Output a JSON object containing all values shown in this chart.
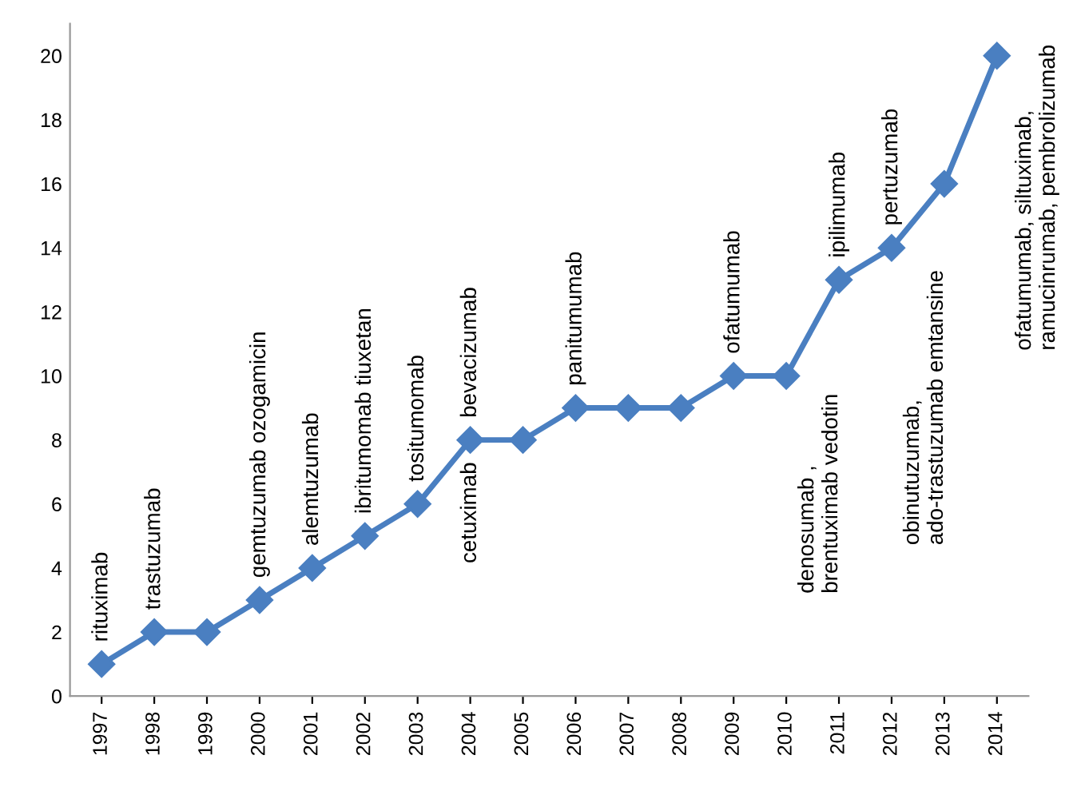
{
  "chart_data": {
    "type": "line",
    "categories": [
      "1997",
      "1998",
      "1999",
      "2000",
      "2001",
      "2002",
      "2003",
      "2004",
      "2005",
      "2006",
      "2007",
      "2008",
      "2009",
      "2010",
      "2011",
      "2012",
      "2013",
      "2014"
    ],
    "series": [
      {
        "color": "#4a7fc1",
        "values": [
          1,
          2,
          2,
          3,
          4,
          5,
          6,
          8,
          8,
          9,
          9,
          9,
          10,
          10,
          13,
          14,
          16,
          20
        ]
      }
    ],
    "marker": "diamond",
    "line_style": "solid",
    "grid": false,
    "legend": false,
    "ylim": [
      0,
      21
    ],
    "yticks": [
      0,
      2,
      4,
      6,
      8,
      10,
      12,
      14,
      16,
      18,
      20
    ],
    "annotations": [
      {
        "text": "rituximab",
        "x": "1997",
        "y": 1
      },
      {
        "text": "trastuzumab",
        "x": "1998",
        "y": 2
      },
      {
        "text": "gemtuzumab ozogamicin",
        "x": "2000",
        "y": 3
      },
      {
        "text": "alemtuzumab",
        "x": "2001",
        "y": 4
      },
      {
        "text": "ibritumomab tiuxetan",
        "x": "2002",
        "y": 5
      },
      {
        "text": "tositumomab",
        "x": "2003",
        "y": 6
      },
      {
        "text": "bevacizumab",
        "x": "2004",
        "y": 8
      },
      {
        "text": "cetuximab",
        "x": "2004",
        "y": 8
      },
      {
        "text": "panitumumab",
        "x": "2006",
        "y": 9
      },
      {
        "text": "ofatumumab",
        "x": "2009",
        "y": 10
      },
      {
        "text": "denosumab ,\nbrentuximab vedotin",
        "x": "2010",
        "y": 10
      },
      {
        "text": "ipilimumab",
        "x": "2011",
        "y": 13
      },
      {
        "text": "pertuzumab",
        "x": "2012",
        "y": 14
      },
      {
        "text": "obinutuzumab,\nado-trastuzumab emtansine",
        "x": "2012",
        "y": 14
      },
      {
        "text": "ofatumumab, siltuximab,\nramucinrumab, pembrolizumab",
        "x": "2014",
        "y": 20
      }
    ]
  }
}
